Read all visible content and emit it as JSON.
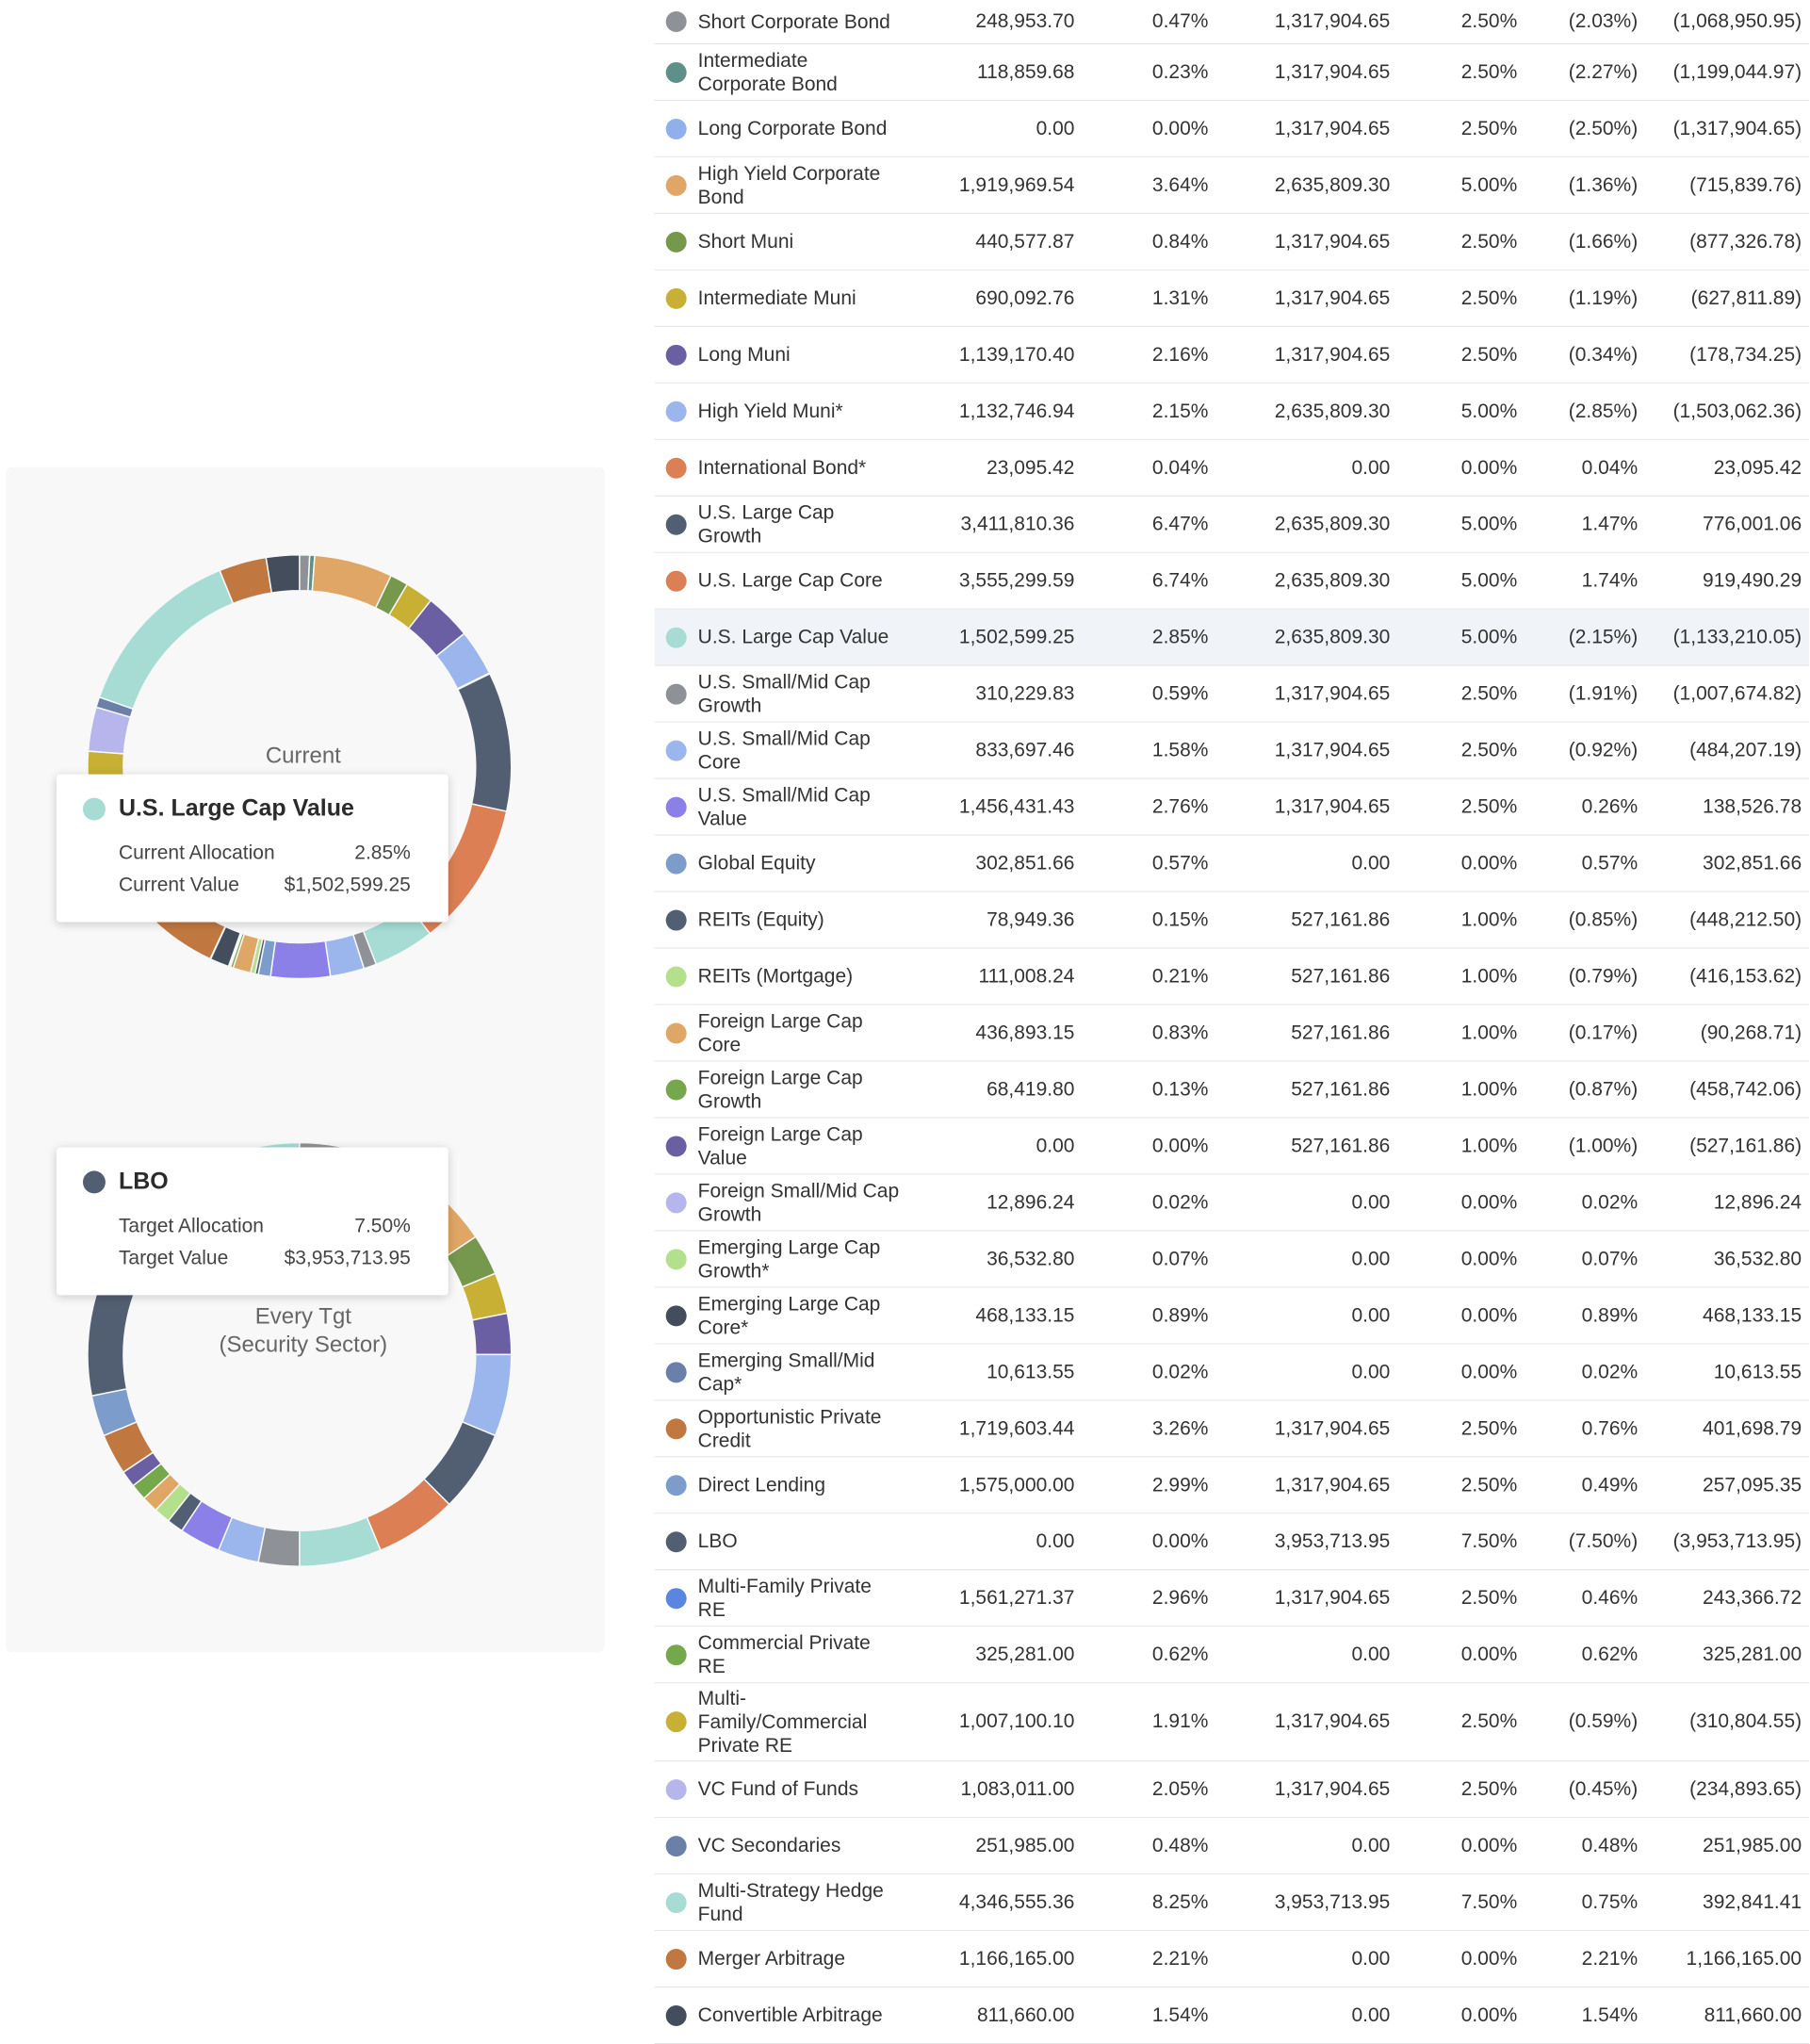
{
  "current_chart": {
    "center_label": "Current",
    "tooltip": {
      "title": "U.S. Large Cap Value",
      "color": "#a6dcd4",
      "rows": [
        {
          "label": "Current Allocation",
          "value": "2.85%"
        },
        {
          "label": "Current Value",
          "value": "$1,502,599.25"
        }
      ]
    }
  },
  "target_chart": {
    "center_label_line1": "Every Tgt",
    "center_label_line2": "(Security Sector)",
    "tooltip": {
      "title": "LBO",
      "color": "#525f72",
      "rows": [
        {
          "label": "Target Allocation",
          "value": "7.50%"
        },
        {
          "label": "Target Value",
          "value": "$3,953,713.95"
        }
      ]
    }
  },
  "rows": [
    {
      "name": [
        "Short Corporate Bond"
      ],
      "color": "#8e9296",
      "current_value": "248,953.70",
      "current_pct": "0.47%",
      "target_value": "1,317,904.65",
      "target_pct": "2.50%",
      "diff_pct": "(2.03%)",
      "diff_value": "(1,068,950.95)"
    },
    {
      "name": [
        "Intermediate",
        "Corporate Bond"
      ],
      "color": "#5e8f89",
      "current_value": "118,859.68",
      "current_pct": "0.23%",
      "target_value": "1,317,904.65",
      "target_pct": "2.50%",
      "diff_pct": "(2.27%)",
      "diff_value": "(1,199,044.97)"
    },
    {
      "name": [
        "Long Corporate Bond"
      ],
      "color": "#8fb0ea",
      "current_value": "0.00",
      "current_pct": "0.00%",
      "target_value": "1,317,904.65",
      "target_pct": "2.50%",
      "diff_pct": "(2.50%)",
      "diff_value": "(1,317,904.65)"
    },
    {
      "name": [
        "High Yield Corporate",
        "Bond"
      ],
      "color": "#e0a665",
      "current_value": "1,919,969.54",
      "current_pct": "3.64%",
      "target_value": "2,635,809.30",
      "target_pct": "5.00%",
      "diff_pct": "(1.36%)",
      "diff_value": "(715,839.76)"
    },
    {
      "name": [
        "Short Muni"
      ],
      "color": "#75984d",
      "current_value": "440,577.87",
      "current_pct": "0.84%",
      "target_value": "1,317,904.65",
      "target_pct": "2.50%",
      "diff_pct": "(1.66%)",
      "diff_value": "(877,326.78)"
    },
    {
      "name": [
        "Intermediate Muni"
      ],
      "color": "#c8b035",
      "current_value": "690,092.76",
      "current_pct": "1.31%",
      "target_value": "1,317,904.65",
      "target_pct": "2.50%",
      "diff_pct": "(1.19%)",
      "diff_value": "(627,811.89)"
    },
    {
      "name": [
        "Long Muni"
      ],
      "color": "#6a5fa3",
      "current_value": "1,139,170.40",
      "current_pct": "2.16%",
      "target_value": "1,317,904.65",
      "target_pct": "2.50%",
      "diff_pct": "(0.34%)",
      "diff_value": "(178,734.25)"
    },
    {
      "name": [
        "High Yield Muni*"
      ],
      "color": "#9ab6ec",
      "current_value": "1,132,746.94",
      "current_pct": "2.15%",
      "target_value": "2,635,809.30",
      "target_pct": "5.00%",
      "diff_pct": "(2.85%)",
      "diff_value": "(1,503,062.36)"
    },
    {
      "name": [
        "International Bond*"
      ],
      "color": "#dc7f55",
      "current_value": "23,095.42",
      "current_pct": "0.04%",
      "target_value": "0.00",
      "target_pct": "0.00%",
      "diff_pct": "0.04%",
      "diff_value": "23,095.42"
    },
    {
      "name": [
        "U.S. Large Cap Growth"
      ],
      "color": "#525f72",
      "current_value": "3,411,810.36",
      "current_pct": "6.47%",
      "target_value": "2,635,809.30",
      "target_pct": "5.00%",
      "diff_pct": "1.47%",
      "diff_value": "776,001.06"
    },
    {
      "name": [
        "U.S. Large Cap Core"
      ],
      "color": "#dc7f55",
      "current_value": "3,555,299.59",
      "current_pct": "6.74%",
      "target_value": "2,635,809.30",
      "target_pct": "5.00%",
      "diff_pct": "1.74%",
      "diff_value": "919,490.29"
    },
    {
      "name": [
        "U.S. Large Cap Value"
      ],
      "color": "#a6dcd4",
      "current_value": "1,502,599.25",
      "current_pct": "2.85%",
      "target_value": "2,635,809.30",
      "target_pct": "5.00%",
      "diff_pct": "(2.15%)",
      "diff_value": "(1,133,210.05)",
      "highlight": true
    },
    {
      "name": [
        "U.S. Small/Mid Cap",
        "Growth"
      ],
      "color": "#8e9296",
      "current_value": "310,229.83",
      "current_pct": "0.59%",
      "target_value": "1,317,904.65",
      "target_pct": "2.50%",
      "diff_pct": "(1.91%)",
      "diff_value": "(1,007,674.82)"
    },
    {
      "name": [
        "U.S. Small/Mid Cap",
        "Core"
      ],
      "color": "#9ab6ec",
      "current_value": "833,697.46",
      "current_pct": "1.58%",
      "target_value": "1,317,904.65",
      "target_pct": "2.50%",
      "diff_pct": "(0.92%)",
      "diff_value": "(484,207.19)"
    },
    {
      "name": [
        "U.S. Small/Mid Cap",
        "Value"
      ],
      "color": "#8b80e8",
      "current_value": "1,456,431.43",
      "current_pct": "2.76%",
      "target_value": "1,317,904.65",
      "target_pct": "2.50%",
      "diff_pct": "0.26%",
      "diff_value": "138,526.78"
    },
    {
      "name": [
        "Global Equity"
      ],
      "color": "#7c9ccc",
      "current_value": "302,851.66",
      "current_pct": "0.57%",
      "target_value": "0.00",
      "target_pct": "0.00%",
      "diff_pct": "0.57%",
      "diff_value": "302,851.66"
    },
    {
      "name": [
        "REITs (Equity)"
      ],
      "color": "#525f72",
      "current_value": "78,949.36",
      "current_pct": "0.15%",
      "target_value": "527,161.86",
      "target_pct": "1.00%",
      "diff_pct": "(0.85%)",
      "diff_value": "(448,212.50)"
    },
    {
      "name": [
        "REITs (Mortgage)"
      ],
      "color": "#b4e08c",
      "current_value": "111,008.24",
      "current_pct": "0.21%",
      "target_value": "527,161.86",
      "target_pct": "1.00%",
      "diff_pct": "(0.79%)",
      "diff_value": "(416,153.62)"
    },
    {
      "name": [
        "Foreign Large Cap",
        "Core"
      ],
      "color": "#e0a665",
      "current_value": "436,893.15",
      "current_pct": "0.83%",
      "target_value": "527,161.86",
      "target_pct": "1.00%",
      "diff_pct": "(0.17%)",
      "diff_value": "(90,268.71)"
    },
    {
      "name": [
        "Foreign Large Cap",
        "Growth"
      ],
      "color": "#75a84d",
      "current_value": "68,419.80",
      "current_pct": "0.13%",
      "target_value": "527,161.86",
      "target_pct": "1.00%",
      "diff_pct": "(0.87%)",
      "diff_value": "(458,742.06)"
    },
    {
      "name": [
        "Foreign Large Cap",
        "Value"
      ],
      "color": "#6a5fa3",
      "current_value": "0.00",
      "current_pct": "0.00%",
      "target_value": "527,161.86",
      "target_pct": "1.00%",
      "diff_pct": "(1.00%)",
      "diff_value": "(527,161.86)"
    },
    {
      "name": [
        "Foreign Small/Mid Cap",
        "Growth"
      ],
      "color": "#b6b6ec",
      "current_value": "12,896.24",
      "current_pct": "0.02%",
      "target_value": "0.00",
      "target_pct": "0.00%",
      "diff_pct": "0.02%",
      "diff_value": "12,896.24"
    },
    {
      "name": [
        "Emerging Large Cap",
        "Growth*"
      ],
      "color": "#b4e08c",
      "current_value": "36,532.80",
      "current_pct": "0.07%",
      "target_value": "0.00",
      "target_pct": "0.00%",
      "diff_pct": "0.07%",
      "diff_value": "36,532.80"
    },
    {
      "name": [
        "Emerging Large Cap",
        "Core*"
      ],
      "color": "#444d5c",
      "current_value": "468,133.15",
      "current_pct": "0.89%",
      "target_value": "0.00",
      "target_pct": "0.00%",
      "diff_pct": "0.89%",
      "diff_value": "468,133.15"
    },
    {
      "name": [
        "Emerging Small/Mid",
        "Cap*"
      ],
      "color": "#6a80a8",
      "current_value": "10,613.55",
      "current_pct": "0.02%",
      "target_value": "0.00",
      "target_pct": "0.00%",
      "diff_pct": "0.02%",
      "diff_value": "10,613.55"
    },
    {
      "name": [
        "Opportunistic Private",
        "Credit"
      ],
      "color": "#c07840",
      "current_value": "1,719,603.44",
      "current_pct": "3.26%",
      "target_value": "1,317,904.65",
      "target_pct": "2.50%",
      "diff_pct": "0.76%",
      "diff_value": "401,698.79"
    },
    {
      "name": [
        "Direct Lending"
      ],
      "color": "#7c9ccc",
      "current_value": "1,575,000.00",
      "current_pct": "2.99%",
      "target_value": "1,317,904.65",
      "target_pct": "2.50%",
      "diff_pct": "0.49%",
      "diff_value": "257,095.35"
    },
    {
      "name": [
        "LBO"
      ],
      "color": "#525f72",
      "current_value": "0.00",
      "current_pct": "0.00%",
      "target_value": "3,953,713.95",
      "target_pct": "7.50%",
      "diff_pct": "(7.50%)",
      "diff_value": "(3,953,713.95)"
    },
    {
      "name": [
        "Multi-Family Private",
        "RE"
      ],
      "color": "#5a86e0",
      "current_value": "1,561,271.37",
      "current_pct": "2.96%",
      "target_value": "1,317,904.65",
      "target_pct": "2.50%",
      "diff_pct": "0.46%",
      "diff_value": "243,366.72"
    },
    {
      "name": [
        "Commercial Private RE"
      ],
      "color": "#75a84d",
      "current_value": "325,281.00",
      "current_pct": "0.62%",
      "target_value": "0.00",
      "target_pct": "0.00%",
      "diff_pct": "0.62%",
      "diff_value": "325,281.00"
    },
    {
      "name": [
        "Multi-",
        "Family/Commercial",
        "Private RE"
      ],
      "color": "#c8b035",
      "current_value": "1,007,100.10",
      "current_pct": "1.91%",
      "target_value": "1,317,904.65",
      "target_pct": "2.50%",
      "diff_pct": "(0.59%)",
      "diff_value": "(310,804.55)"
    },
    {
      "name": [
        "VC Fund of Funds"
      ],
      "color": "#b6b6ec",
      "current_value": "1,083,011.00",
      "current_pct": "2.05%",
      "target_value": "1,317,904.65",
      "target_pct": "2.50%",
      "diff_pct": "(0.45%)",
      "diff_value": "(234,893.65)"
    },
    {
      "name": [
        "VC Secondaries"
      ],
      "color": "#6a80a8",
      "current_value": "251,985.00",
      "current_pct": "0.48%",
      "target_value": "0.00",
      "target_pct": "0.00%",
      "diff_pct": "0.48%",
      "diff_value": "251,985.00"
    },
    {
      "name": [
        "Multi-Strategy Hedge",
        "Fund"
      ],
      "color": "#a6dcd4",
      "current_value": "4,346,555.36",
      "current_pct": "8.25%",
      "target_value": "3,953,713.95",
      "target_pct": "7.50%",
      "diff_pct": "0.75%",
      "diff_value": "392,841.41"
    },
    {
      "name": [
        "Merger Arbitrage"
      ],
      "color": "#c07840",
      "current_value": "1,166,165.00",
      "current_pct": "2.21%",
      "target_value": "0.00",
      "target_pct": "0.00%",
      "diff_pct": "2.21%",
      "diff_value": "1,166,165.00"
    },
    {
      "name": [
        "Convertible Arbitrage"
      ],
      "color": "#444d5c",
      "current_value": "811,660.00",
      "current_pct": "1.54%",
      "target_value": "0.00",
      "target_pct": "0.00%",
      "diff_pct": "1.54%",
      "diff_value": "811,660.00"
    }
  ]
}
